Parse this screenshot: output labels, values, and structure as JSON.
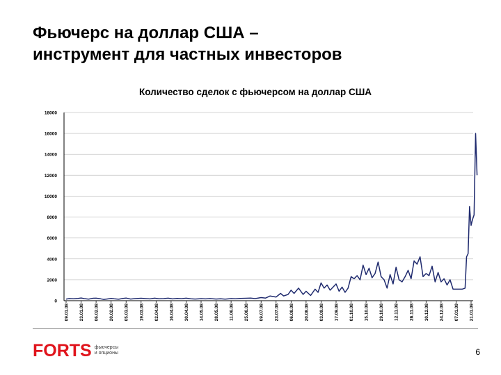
{
  "slide": {
    "title_lines": [
      "Фьючерс на доллар США –",
      "инструмент для частных инвесторов"
    ],
    "page_number": "6"
  },
  "logo": {
    "word": "FORTS",
    "subtitle_lines": [
      "фьючерсы",
      "и опционы"
    ],
    "color": "#e0141c"
  },
  "colors": {
    "line": "#1f2a6e",
    "grid": "#c8c8c8",
    "axis": "#000000"
  },
  "chart_data": {
    "type": "line",
    "title": "Количество сделок с фьючерсом на доллар США",
    "xlabel": "",
    "ylabel": "",
    "ylim": [
      0,
      18000
    ],
    "yticks": [
      0,
      2000,
      4000,
      6000,
      8000,
      10000,
      12000,
      14000,
      16000,
      18000
    ],
    "grid": true,
    "legend": "none",
    "xticks": [
      "09.01.08",
      "23.01.08",
      "06.02.08",
      "20.02.08",
      "05.03.08",
      "19.03.08",
      "02.04.08",
      "16.04.08",
      "30.04.08",
      "14.05.08",
      "28.05.08",
      "11.06.08",
      "25.06.08",
      "09.07.08",
      "23.07.08",
      "06.08.08",
      "20.08.08",
      "03.09.08",
      "17.09.08",
      "01.10.08",
      "15.10.08",
      "29.10.08",
      "12.11.08",
      "26.11.08",
      "10.12.08",
      "24.12.08",
      "07.01.09",
      "21.01.09"
    ],
    "series": [
      {
        "values": [
          [
            0,
            150
          ],
          [
            0.2,
            200
          ],
          [
            0.5,
            180
          ],
          [
            0.8,
            220
          ],
          [
            1.0,
            260
          ],
          [
            1.2,
            200
          ],
          [
            1.5,
            150
          ],
          [
            1.8,
            230
          ],
          [
            2.0,
            240
          ],
          [
            2.3,
            180
          ],
          [
            2.5,
            120
          ],
          [
            2.8,
            170
          ],
          [
            3.0,
            210
          ],
          [
            3.2,
            180
          ],
          [
            3.5,
            140
          ],
          [
            3.8,
            220
          ],
          [
            4.0,
            250
          ],
          [
            4.3,
            160
          ],
          [
            4.6,
            200
          ],
          [
            5.0,
            230
          ],
          [
            5.3,
            200
          ],
          [
            5.6,
            170
          ],
          [
            5.9,
            240
          ],
          [
            6.2,
            180
          ],
          [
            6.5,
            200
          ],
          [
            6.8,
            240
          ],
          [
            7.1,
            170
          ],
          [
            7.4,
            210
          ],
          [
            7.7,
            190
          ],
          [
            8.0,
            240
          ],
          [
            8.3,
            180
          ],
          [
            8.6,
            160
          ],
          [
            9.0,
            190
          ],
          [
            9.3,
            170
          ],
          [
            9.6,
            200
          ],
          [
            10.0,
            160
          ],
          [
            10.3,
            180
          ],
          [
            10.6,
            150
          ],
          [
            11.0,
            200
          ],
          [
            11.3,
            180
          ],
          [
            11.6,
            210
          ],
          [
            12.0,
            230
          ],
          [
            12.3,
            250
          ],
          [
            12.6,
            200
          ],
          [
            13.0,
            300
          ],
          [
            13.3,
            250
          ],
          [
            13.6,
            450
          ],
          [
            14.0,
            350
          ],
          [
            14.3,
            700
          ],
          [
            14.5,
            450
          ],
          [
            14.8,
            600
          ],
          [
            15.0,
            1000
          ],
          [
            15.2,
            700
          ],
          [
            15.5,
            1200
          ],
          [
            15.8,
            600
          ],
          [
            16.0,
            900
          ],
          [
            16.3,
            500
          ],
          [
            16.6,
            1100
          ],
          [
            16.8,
            800
          ],
          [
            17.0,
            1700
          ],
          [
            17.2,
            1200
          ],
          [
            17.4,
            1500
          ],
          [
            17.6,
            1000
          ],
          [
            17.8,
            1300
          ],
          [
            18.0,
            1600
          ],
          [
            18.2,
            900
          ],
          [
            18.4,
            1300
          ],
          [
            18.6,
            800
          ],
          [
            18.8,
            1200
          ],
          [
            19.0,
            2300
          ],
          [
            19.2,
            2100
          ],
          [
            19.4,
            2400
          ],
          [
            19.6,
            2000
          ],
          [
            19.8,
            3400
          ],
          [
            20.0,
            2500
          ],
          [
            20.2,
            3100
          ],
          [
            20.4,
            2200
          ],
          [
            20.6,
            2600
          ],
          [
            20.8,
            3700
          ],
          [
            21.0,
            2300
          ],
          [
            21.2,
            2000
          ],
          [
            21.4,
            1200
          ],
          [
            21.6,
            2500
          ],
          [
            21.8,
            1600
          ],
          [
            22.0,
            3200
          ],
          [
            22.2,
            2000
          ],
          [
            22.4,
            1800
          ],
          [
            22.6,
            2300
          ],
          [
            22.8,
            2900
          ],
          [
            23.0,
            2100
          ],
          [
            23.2,
            3800
          ],
          [
            23.4,
            3500
          ],
          [
            23.6,
            4200
          ],
          [
            23.8,
            2300
          ],
          [
            24.0,
            2600
          ],
          [
            24.2,
            2400
          ],
          [
            24.4,
            3300
          ],
          [
            24.6,
            1800
          ],
          [
            24.8,
            2700
          ],
          [
            25.0,
            1800
          ],
          [
            25.2,
            2100
          ],
          [
            25.4,
            1500
          ],
          [
            25.6,
            2000
          ],
          [
            25.8,
            1100
          ],
          [
            26.0,
            1100
          ],
          [
            26.2,
            1100
          ],
          [
            26.4,
            1100
          ],
          [
            26.6,
            1200
          ],
          [
            26.7,
            4200
          ],
          [
            26.8,
            4500
          ],
          [
            26.9,
            9000
          ],
          [
            27.0,
            7200
          ],
          [
            27.1,
            7800
          ],
          [
            27.2,
            8200
          ],
          [
            27.3,
            16000
          ],
          [
            27.4,
            12000
          ]
        ]
      }
    ]
  }
}
